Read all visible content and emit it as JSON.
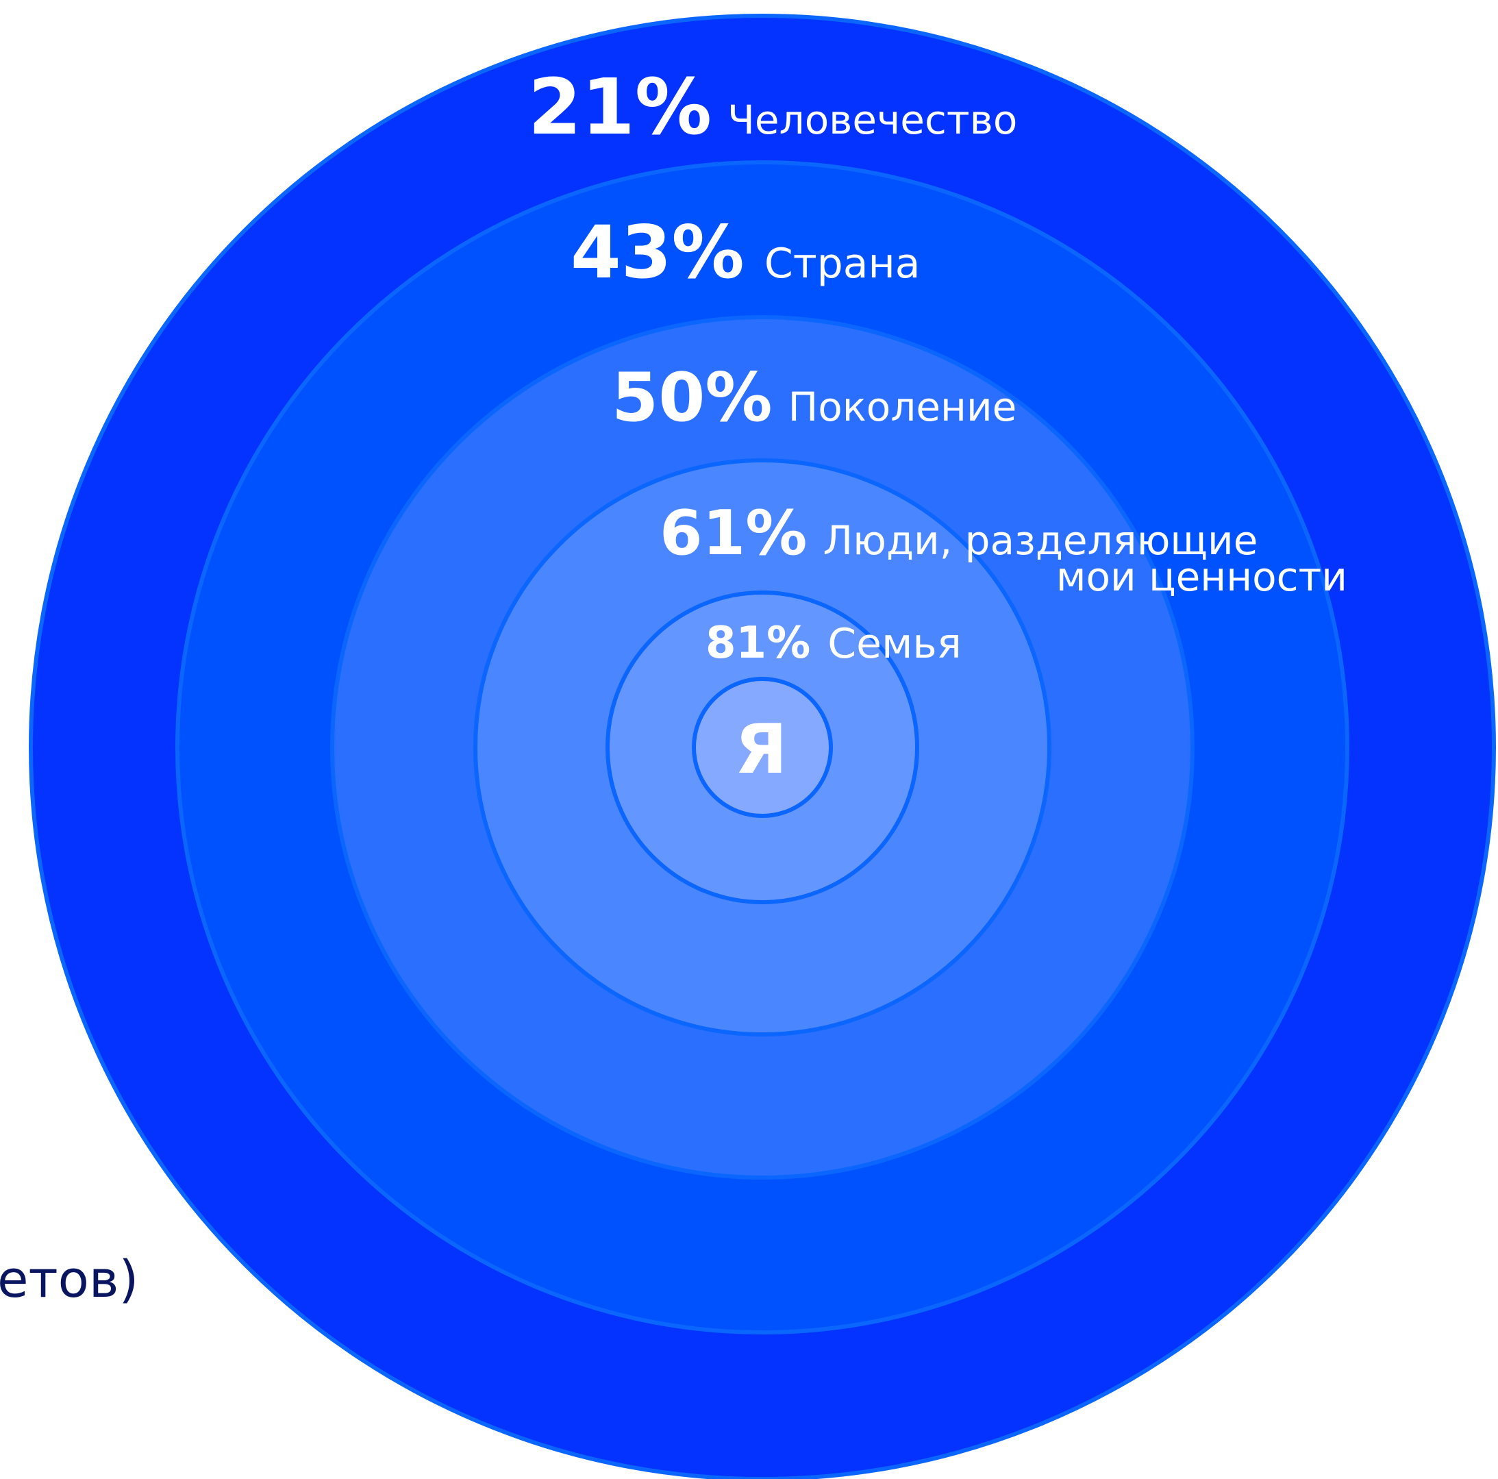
{
  "rings": [
    {
      "value": "21%",
      "label": "Человечество"
    },
    {
      "value": "43%",
      "label": "Страна"
    },
    {
      "value": "50%",
      "label": "Поколение"
    },
    {
      "value": "61%",
      "label": "Люди, разделяющие",
      "label_line2": "мои ценности"
    },
    {
      "value": "81%",
      "label": "Семья"
    }
  ],
  "center": "Я",
  "side_fragment": "етов)"
}
